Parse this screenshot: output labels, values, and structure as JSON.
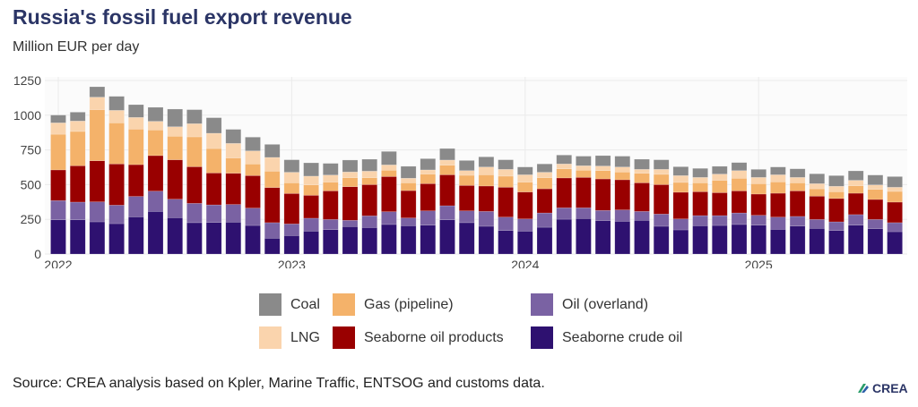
{
  "title": "Russia's fossil fuel export revenue",
  "subtitle": "Million EUR per day",
  "source": "Source: CREA analysis based on Kpler, Marine Traffic, ENTSOG and customs data.",
  "logo": "CREA",
  "chart_data": {
    "type": "bar",
    "stacked": true,
    "ylabel": "Million EUR per day",
    "ylim": [
      0,
      1250
    ],
    "yticks": [
      0,
      250,
      500,
      750,
      1000,
      1250
    ],
    "xtick_labels": [
      "2022",
      "2023",
      "2024",
      "2025"
    ],
    "grid": true,
    "legend_position": "bottom",
    "categories": [
      "2022-01",
      "2022-02",
      "2022-03",
      "2022-04",
      "2022-05",
      "2022-06",
      "2022-07",
      "2022-08",
      "2022-09",
      "2022-10",
      "2022-11",
      "2022-12",
      "2023-01",
      "2023-02",
      "2023-03",
      "2023-04",
      "2023-05",
      "2023-06",
      "2023-07",
      "2023-08",
      "2023-09",
      "2023-10",
      "2023-11",
      "2023-12",
      "2024-01",
      "2024-02",
      "2024-03",
      "2024-04",
      "2024-05",
      "2024-06",
      "2024-07",
      "2024-08",
      "2024-09",
      "2024-10",
      "2024-11",
      "2024-12",
      "2025-01",
      "2025-02",
      "2025-03",
      "2025-04",
      "2025-05",
      "2025-06",
      "2025-07",
      "2025-08"
    ],
    "series": [
      {
        "name": "Seaborne crude oil",
        "color": "#2e1170",
        "values": [
          247,
          247,
          232,
          219,
          268,
          307,
          262,
          226,
          228,
          230,
          206,
          114,
          133,
          165,
          176,
          198,
          191,
          213,
          204,
          208,
          247,
          226,
          200,
          170,
          165,
          193,
          251,
          256,
          241,
          236,
          243,
          200,
          174,
          204,
          206,
          213,
          208,
          178,
          202,
          185,
          170,
          208,
          183,
          161
        ]
      },
      {
        "name": "Oil (overland)",
        "color": "#7a62a3",
        "values": [
          138,
          127,
          144,
          133,
          147,
          146,
          133,
          139,
          126,
          127,
          125,
          112,
          84,
          93,
          73,
          45,
          84,
          92,
          56,
          103,
          101,
          85,
          107,
          96,
          88,
          103,
          82,
          77,
          73,
          82,
          64,
          88,
          79,
          73,
          71,
          83,
          71,
          88,
          69,
          64,
          62,
          76,
          66,
          65
        ]
      },
      {
        "name": "Seaborne oil products",
        "color": "#990000",
        "values": [
          221,
          262,
          296,
          297,
          229,
          256,
          284,
          264,
          230,
          225,
          234,
          253,
          219,
          165,
          206,
          242,
          225,
          253,
          197,
          196,
          223,
          183,
          183,
          215,
          194,
          174,
          215,
          219,
          227,
          217,
          206,
          212,
          192,
          172,
          165,
          159,
          153,
          172,
          184,
          168,
          168,
          154,
          144,
          148
        ]
      },
      {
        "name": "Gas (pipeline)",
        "color": "#f4b26a",
        "values": [
          257,
          247,
          368,
          296,
          256,
          185,
          170,
          215,
          176,
          110,
          84,
          118,
          77,
          75,
          63,
          65,
          50,
          46,
          56,
          69,
          69,
          73,
          81,
          80,
          71,
          80,
          66,
          52,
          60,
          56,
          69,
          74,
          71,
          64,
          89,
          91,
          75,
          82,
          58,
          53,
          49,
          54,
          73,
          77
        ]
      },
      {
        "name": "LNG",
        "color": "#fad4ad",
        "values": [
          82,
          75,
          90,
          90,
          84,
          62,
          68,
          95,
          110,
          105,
          94,
          99,
          76,
          63,
          51,
          41,
          47,
          38,
          33,
          30,
          37,
          34,
          56,
          49,
          53,
          39,
          35,
          32,
          33,
          36,
          28,
          36,
          49,
          39,
          45,
          55,
          45,
          51,
          39,
          37,
          39,
          39,
          32,
          30
        ]
      },
      {
        "name": "Coal",
        "color": "#8a8a8a",
        "values": [
          56,
          64,
          75,
          101,
          92,
          101,
          127,
          101,
          112,
          101,
          99,
          94,
          90,
          96,
          84,
          86,
          86,
          97,
          86,
          81,
          83,
          73,
          73,
          69,
          56,
          60,
          64,
          69,
          75,
          78,
          73,
          69,
          64,
          65,
          56,
          58,
          58,
          56,
          62,
          71,
          77,
          68,
          71,
          77
        ]
      }
    ]
  },
  "legend": [
    {
      "label": "Coal",
      "color": "#8a8a8a"
    },
    {
      "label": "Gas (pipeline)",
      "color": "#f4b26a"
    },
    {
      "label": "Oil (overland)",
      "color": "#7a62a3"
    },
    {
      "label": "LNG",
      "color": "#fad4ad"
    },
    {
      "label": "Seaborne oil products",
      "color": "#990000"
    },
    {
      "label": "Seaborne crude oil",
      "color": "#2e1170"
    }
  ]
}
